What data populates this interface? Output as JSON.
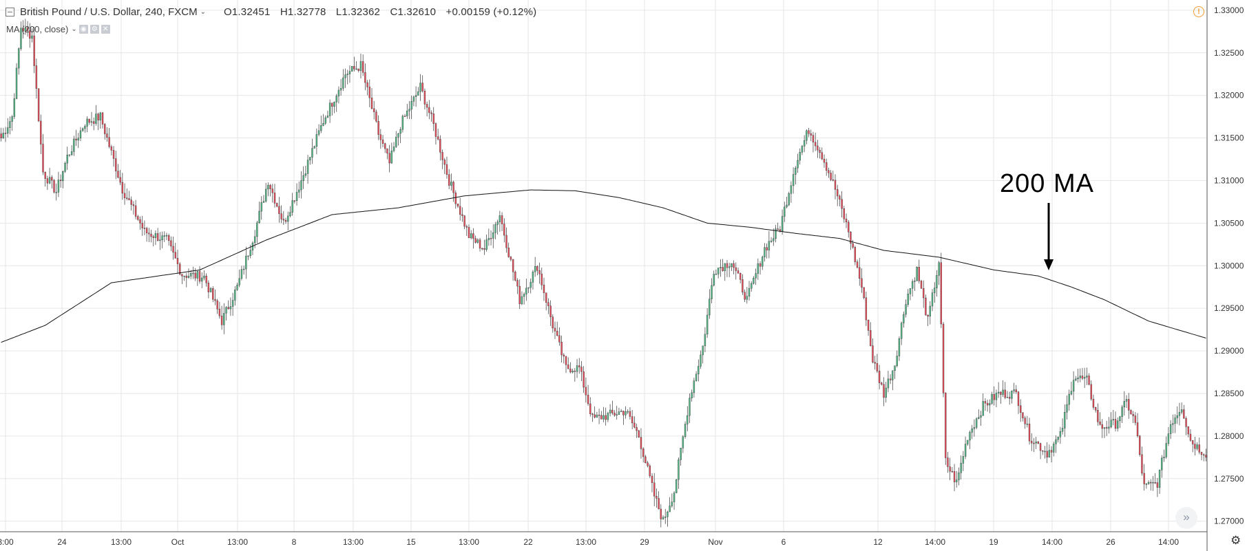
{
  "header": {
    "symbol": "British Pound / U.S. Dollar, 240, FXCM",
    "open": "O1.32451",
    "high": "H1.32778",
    "low": "L1.32362",
    "close": "C1.32610",
    "change": "+0.00159 (+0.12%)"
  },
  "indicator": {
    "label": "MA (200, close)"
  },
  "annotation": {
    "text": "200 MA"
  },
  "colors": {
    "up": "#53b987",
    "down": "#eb4d5c",
    "ma": "#111111",
    "grid": "#e6e6e6",
    "alert": "#f19a33"
  },
  "icons": {
    "collapse": "minus-square-icon",
    "alert": "alert-circle-icon",
    "scroll": "double-chevron-right-icon",
    "settings": "gear-icon"
  },
  "chart_data": {
    "type": "candlestick",
    "yticks": [
      "1.33000",
      "1.32500",
      "1.32000",
      "1.31500",
      "1.31000",
      "1.30500",
      "1.30000",
      "1.29500",
      "1.29000",
      "1.28500",
      "1.28000",
      "1.27500",
      "1.27000"
    ],
    "ylim": [
      1.2665,
      1.3312
    ],
    "xticks": [
      "3:00",
      "24",
      "13:00",
      "Oct",
      "13:00",
      "8",
      "13:00",
      "15",
      "13:00",
      "22",
      "13:00",
      "29",
      "Nov",
      "6",
      "12",
      "14:00",
      "19",
      "14:00",
      "26",
      "14:00"
    ],
    "price_anchors": [
      [
        0,
        1.315
      ],
      [
        5,
        1.3175
      ],
      [
        9,
        1.328
      ],
      [
        14,
        1.327
      ],
      [
        19,
        1.311
      ],
      [
        25,
        1.3087
      ],
      [
        30,
        1.3128
      ],
      [
        38,
        1.3168
      ],
      [
        45,
        1.3175
      ],
      [
        55,
        1.309
      ],
      [
        65,
        1.304
      ],
      [
        75,
        1.303
      ],
      [
        82,
        1.299
      ],
      [
        92,
        1.2987
      ],
      [
        100,
        1.2935
      ],
      [
        107,
        1.2975
      ],
      [
        115,
        1.304
      ],
      [
        121,
        1.31
      ],
      [
        128,
        1.305
      ],
      [
        136,
        1.31
      ],
      [
        146,
        1.317
      ],
      [
        156,
        1.3225
      ],
      [
        163,
        1.3235
      ],
      [
        171,
        1.3155
      ],
      [
        176,
        1.312
      ],
      [
        181,
        1.3165
      ],
      [
        190,
        1.321
      ],
      [
        196,
        1.3165
      ],
      [
        203,
        1.31
      ],
      [
        212,
        1.3035
      ],
      [
        219,
        1.302
      ],
      [
        226,
        1.306
      ],
      [
        235,
        1.296
      ],
      [
        243,
        1.3
      ],
      [
        250,
        1.293
      ],
      [
        256,
        1.288
      ],
      [
        262,
        1.288
      ],
      [
        268,
        1.282
      ],
      [
        276,
        1.2825
      ],
      [
        283,
        1.283
      ],
      [
        289,
        1.28
      ],
      [
        296,
        1.273
      ],
      [
        300,
        1.27
      ],
      [
        305,
        1.2735
      ],
      [
        312,
        1.2845
      ],
      [
        318,
        1.2905
      ],
      [
        323,
        1.2995
      ],
      [
        331,
        1.3005
      ],
      [
        338,
        1.296
      ],
      [
        346,
        1.302
      ],
      [
        353,
        1.3045
      ],
      [
        360,
        1.312
      ],
      [
        366,
        1.316
      ],
      [
        372,
        1.313
      ],
      [
        378,
        1.309
      ],
      [
        384,
        1.304
      ],
      [
        390,
        1.2975
      ],
      [
        395,
        1.289
      ],
      [
        400,
        1.285
      ],
      [
        405,
        1.2885
      ],
      [
        410,
        1.296
      ],
      [
        415,
        1.2995
      ],
      [
        420,
        1.2935
      ],
      [
        425,
        1.3005
      ],
      [
        428,
        1.277
      ],
      [
        433,
        1.2745
      ],
      [
        438,
        1.28
      ],
      [
        445,
        1.2835
      ],
      [
        452,
        1.285
      ],
      [
        460,
        1.285
      ],
      [
        466,
        1.28
      ],
      [
        474,
        1.278
      ],
      [
        480,
        1.28
      ],
      [
        486,
        1.287
      ],
      [
        492,
        1.2865
      ],
      [
        498,
        1.281
      ],
      [
        505,
        1.2815
      ],
      [
        510,
        1.284
      ],
      [
        514,
        1.2815
      ],
      [
        518,
        1.274
      ],
      [
        524,
        1.2745
      ],
      [
        530,
        1.2815
      ],
      [
        535,
        1.2835
      ],
      [
        539,
        1.2795
      ],
      [
        543,
        1.2785
      ],
      [
        546,
        1.278
      ]
    ],
    "ma_anchors": [
      [
        0,
        1.291
      ],
      [
        20,
        1.293
      ],
      [
        50,
        1.298
      ],
      [
        90,
        1.2995
      ],
      [
        120,
        1.303
      ],
      [
        150,
        1.306
      ],
      [
        180,
        1.3068
      ],
      [
        210,
        1.3082
      ],
      [
        240,
        1.3089
      ],
      [
        260,
        1.3088
      ],
      [
        280,
        1.308
      ],
      [
        300,
        1.3068
      ],
      [
        320,
        1.305
      ],
      [
        340,
        1.3045
      ],
      [
        360,
        1.3038
      ],
      [
        380,
        1.3032
      ],
      [
        400,
        1.3018
      ],
      [
        425,
        1.301
      ],
      [
        450,
        1.2995
      ],
      [
        470,
        1.2988
      ],
      [
        485,
        1.2975
      ],
      [
        500,
        1.296
      ],
      [
        520,
        1.2935
      ],
      [
        546,
        1.2915
      ]
    ]
  }
}
